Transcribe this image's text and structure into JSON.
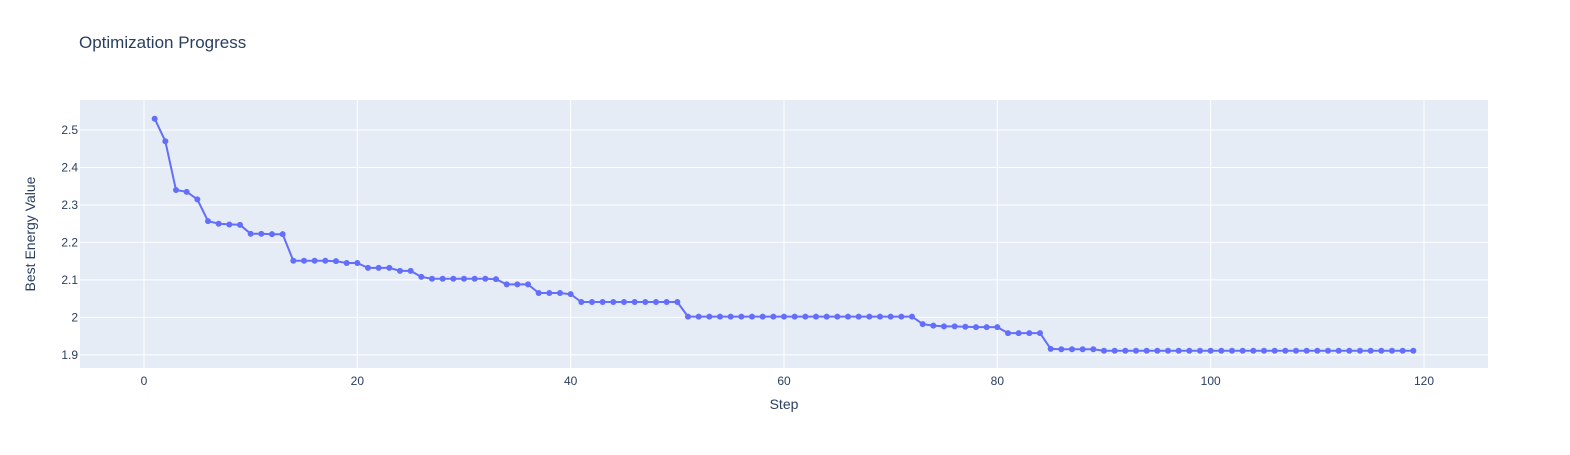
{
  "chart_data": {
    "type": "line",
    "title": "Optimization Progress",
    "xlabel": "Step",
    "ylabel": "Best Energy Value",
    "xlim": [
      -6,
      126
    ],
    "ylim": [
      1.865,
      2.58
    ],
    "x_ticks": [
      0,
      20,
      40,
      60,
      80,
      100,
      120
    ],
    "y_ticks": [
      1.9,
      2,
      2.1,
      2.2,
      2.3,
      2.4,
      2.5
    ],
    "y_tick_labels": [
      "1.9",
      "2",
      "2.1",
      "2.2",
      "2.3",
      "2.4",
      "2.5"
    ],
    "grid": true,
    "colors": {
      "plot_bg": "#e5ecf6",
      "grid": "#ffffff",
      "line": "#636efa",
      "text": "#2a3f5f"
    },
    "series": [
      {
        "mode": "lines+markers",
        "x": [
          1,
          2,
          3,
          4,
          5,
          6,
          7,
          8,
          9,
          10,
          11,
          12,
          13,
          14,
          15,
          16,
          17,
          18,
          19,
          20,
          21,
          22,
          23,
          24,
          25,
          26,
          27,
          28,
          29,
          30,
          31,
          32,
          33,
          34,
          35,
          36,
          37,
          38,
          39,
          40,
          41,
          42,
          43,
          44,
          45,
          46,
          47,
          48,
          49,
          50,
          51,
          52,
          53,
          54,
          55,
          56,
          57,
          58,
          59,
          60,
          61,
          62,
          63,
          64,
          65,
          66,
          67,
          68,
          69,
          70,
          71,
          72,
          73,
          74,
          75,
          76,
          77,
          78,
          79,
          80,
          81,
          82,
          83,
          84,
          85,
          86,
          87,
          88,
          89,
          90,
          91,
          92,
          93,
          94,
          95,
          96,
          97,
          98,
          99,
          100,
          101,
          102,
          103,
          104,
          105,
          106,
          107,
          108,
          109,
          110,
          111,
          112,
          113,
          114,
          115,
          116,
          117,
          118,
          119
        ],
        "y": [
          2.53,
          2.47,
          2.34,
          2.335,
          2.315,
          2.257,
          2.25,
          2.248,
          2.247,
          2.223,
          2.223,
          2.222,
          2.222,
          2.151,
          2.151,
          2.151,
          2.151,
          2.15,
          2.145,
          2.145,
          2.132,
          2.132,
          2.132,
          2.124,
          2.124,
          2.108,
          2.103,
          2.103,
          2.103,
          2.103,
          2.103,
          2.103,
          2.102,
          2.088,
          2.088,
          2.088,
          2.065,
          2.065,
          2.065,
          2.062,
          2.041,
          2.041,
          2.041,
          2.041,
          2.041,
          2.041,
          2.041,
          2.041,
          2.041,
          2.041,
          2.002,
          2.002,
          2.002,
          2.002,
          2.002,
          2.002,
          2.002,
          2.002,
          2.002,
          2.002,
          2.002,
          2.002,
          2.002,
          2.002,
          2.002,
          2.002,
          2.002,
          2.002,
          2.002,
          2.002,
          2.002,
          2.002,
          1.982,
          1.978,
          1.976,
          1.976,
          1.975,
          1.974,
          1.974,
          1.974,
          1.958,
          1.958,
          1.958,
          1.958,
          1.916,
          1.915,
          1.915,
          1.915,
          1.915,
          1.911,
          1.911,
          1.911,
          1.911,
          1.911,
          1.911,
          1.911,
          1.911,
          1.911,
          1.911,
          1.911,
          1.911,
          1.911,
          1.911,
          1.911,
          1.911,
          1.911,
          1.911,
          1.911,
          1.911,
          1.911,
          1.911,
          1.911,
          1.911,
          1.911,
          1.911,
          1.911,
          1.911,
          1.911,
          1.911
        ]
      }
    ]
  }
}
